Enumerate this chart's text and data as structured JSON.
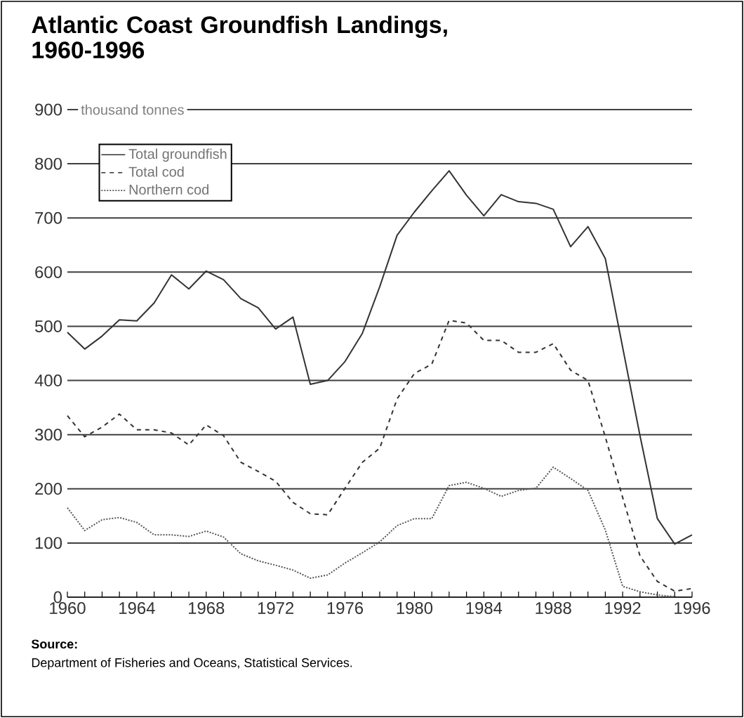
{
  "chart_data": {
    "type": "line",
    "title": "Atlantic Coast Groundfish Landings, 1960-1996",
    "ylabel": "thousand tonnes",
    "x": [
      1960,
      1961,
      1962,
      1963,
      1964,
      1965,
      1966,
      1967,
      1968,
      1969,
      1970,
      1971,
      1972,
      1973,
      1974,
      1975,
      1976,
      1977,
      1978,
      1979,
      1980,
      1981,
      1982,
      1983,
      1984,
      1985,
      1986,
      1987,
      1988,
      1989,
      1990,
      1991,
      1992,
      1993,
      1994,
      1995,
      1996
    ],
    "series": [
      {
        "name": "Total groundfish",
        "color": "#333333",
        "line_style": "solid",
        "values": [
          489,
          458,
          482,
          512,
          510,
          543,
          595,
          569,
          602,
          586,
          551,
          534,
          495,
          517,
          393,
          400,
          435,
          487,
          573,
          668,
          711,
          750,
          787,
          742,
          704,
          743,
          730,
          727,
          716,
          647,
          684,
          625,
          461,
          298,
          145,
          98,
          115
        ]
      },
      {
        "name": "Total cod",
        "color": "#333333",
        "line_style": "dashed",
        "values": [
          335,
          296,
          314,
          338,
          309,
          309,
          303,
          281,
          318,
          298,
          249,
          232,
          214,
          175,
          154,
          152,
          201,
          249,
          275,
          366,
          413,
          430,
          511,
          506,
          474,
          474,
          452,
          452,
          468,
          419,
          400,
          296,
          184,
          76,
          29,
          11,
          16
        ]
      },
      {
        "name": "Northern cod",
        "color": "#555555",
        "line_style": "dotted",
        "values": [
          165,
          123,
          143,
          147,
          138,
          115,
          115,
          112,
          122,
          111,
          80,
          67,
          59,
          50,
          35,
          41,
          63,
          82,
          102,
          132,
          145,
          145,
          206,
          212,
          201,
          186,
          197,
          201,
          240,
          219,
          197,
          124,
          20,
          10,
          4,
          1,
          null
        ]
      }
    ],
    "xlim": [
      1960,
      1996
    ],
    "xticks": [
      1960,
      1964,
      1968,
      1972,
      1976,
      1980,
      1984,
      1988,
      1992,
      1996
    ],
    "ylim": [
      0,
      900
    ],
    "yticks": [
      0,
      100,
      200,
      300,
      400,
      500,
      600,
      700,
      800,
      900
    ],
    "grid": "y",
    "legend": "top left",
    "annotations": [
      "Source:",
      "Department of Fisheries and Oceans, Statistical Services."
    ]
  }
}
